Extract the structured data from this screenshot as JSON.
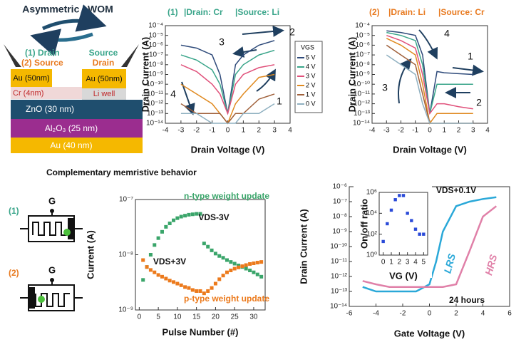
{
  "diagram": {
    "title": "Asymmetric LWOM",
    "left_label_1": "(1) Drain",
    "left_label_2": "(2) Source",
    "right_label_1": "Source",
    "right_label_2": "Drain",
    "layers": {
      "au_left": "Au (50nm)",
      "au_right": "Au (50nm)",
      "cr": "Cr (4nm)",
      "li": "Li well",
      "zno": "ZnO (30 nm)",
      "al2o3": "Al₂O₃ (25 nm)",
      "au_bottom": "Au (40 nm)"
    },
    "section_title": "Complementary memristive behavior",
    "schematic": [
      {
        "label": "(1)",
        "gate": "G"
      },
      {
        "label": "(2)",
        "gate": "G"
      }
    ]
  },
  "chart_data": [
    {
      "type": "line",
      "title": "(1)",
      "subtitles": [
        "|Drain: Cr",
        "|Source: Li"
      ],
      "title_color": "#3aa58a",
      "x_label": "Drain Voltage (V)",
      "y_label": "Drain Current (A)",
      "log_y": true,
      "xlim": [
        -4,
        4
      ],
      "xticks": [
        -4,
        -3,
        -2,
        -1,
        0,
        1,
        2,
        3,
        4
      ],
      "ylim": [
        1e-14,
        0.0001
      ],
      "yticks": [
        {
          "value": 1e-14,
          "label": "10⁻¹⁴"
        },
        {
          "value": 1e-13,
          "label": "10⁻¹³"
        },
        {
          "value": 1e-12,
          "label": "10⁻¹²"
        },
        {
          "value": 1e-11,
          "label": "10⁻¹¹"
        },
        {
          "value": 1e-10,
          "label": "10⁻¹⁰"
        },
        {
          "value": 1e-09,
          "label": "10⁻⁹"
        },
        {
          "value": 1e-08,
          "label": "10⁻⁸"
        },
        {
          "value": 1e-07,
          "label": "10⁻⁷"
        },
        {
          "value": 1e-06,
          "label": "10⁻⁶"
        },
        {
          "value": 1e-05,
          "label": "10⁻⁵"
        },
        {
          "value": 0.0001,
          "label": "10⁻⁴"
        }
      ],
      "legend_title": "VGS",
      "x": [
        -3,
        -2,
        -1,
        -0.5,
        0,
        0.5,
        1,
        2,
        3
      ],
      "series": [
        {
          "name": "5 V",
          "color": "#2e4a7a",
          "values": [
            1e-06,
            5e-07,
            1e-07,
            1e-09,
            1e-13,
            1e-08,
            1e-07,
            1e-06,
            3e-06
          ]
        },
        {
          "name": "4 V",
          "color": "#3aa58a",
          "values": [
            1e-07,
            3e-08,
            3e-09,
            1e-10,
            1e-13,
            1e-09,
            1e-08,
            1e-07,
            3e-07
          ]
        },
        {
          "name": "3 V",
          "color": "#e0507a",
          "values": [
            1e-08,
            2e-09,
            1e-10,
            1e-11,
            1e-13,
            1e-10,
            1e-09,
            5e-09,
            1e-08
          ]
        },
        {
          "name": "2 V",
          "color": "#e08a20",
          "values": [
            1e-10,
            1e-11,
            1e-12,
            1e-13,
            1e-14,
            1e-12,
            1e-11,
            5e-10,
            1e-09
          ]
        },
        {
          "name": "1 V",
          "color": "#a0603a",
          "values": [
            1e-12,
            1e-13,
            1e-13,
            1e-13,
            1e-14,
            1e-13,
            1e-13,
            3e-12,
            1e-11
          ]
        },
        {
          "name": "0 V",
          "color": "#8fb0c0",
          "values": [
            1e-13,
            1e-13,
            1e-14,
            1e-14,
            1e-14,
            1e-14,
            1e-13,
            1e-13,
            1e-12
          ]
        }
      ],
      "annotations": [
        "1",
        "2",
        "3",
        "4"
      ]
    },
    {
      "type": "line",
      "title": "(2)",
      "subtitles": [
        "|Drain: Li",
        "|Source: Cr"
      ],
      "title_color": "#e87a20",
      "x_label": "Drain Voltage (V)",
      "y_label": "Drain Current (A)",
      "log_y": true,
      "xlim": [
        -4,
        4
      ],
      "xticks": [
        -4,
        -3,
        -2,
        -1,
        0,
        1,
        2,
        3,
        4
      ],
      "ylim": [
        1e-14,
        0.0001
      ],
      "yticks": [
        {
          "value": 1e-14,
          "label": "10⁻¹⁴"
        },
        {
          "value": 1e-13,
          "label": "10⁻¹³"
        },
        {
          "value": 1e-12,
          "label": "10⁻¹²"
        },
        {
          "value": 1e-11,
          "label": "10⁻¹¹"
        },
        {
          "value": 1e-10,
          "label": "10⁻¹⁰"
        },
        {
          "value": 1e-09,
          "label": "10⁻⁹"
        },
        {
          "value": 1e-08,
          "label": "10⁻⁸"
        },
        {
          "value": 1e-07,
          "label": "10⁻⁷"
        },
        {
          "value": 1e-06,
          "label": "10⁻⁶"
        },
        {
          "value": 1e-05,
          "label": "10⁻⁵"
        },
        {
          "value": 0.0001,
          "label": "10⁻⁴"
        }
      ],
      "x": [
        -3,
        -2,
        -1,
        -0.5,
        0,
        0.5,
        1,
        2,
        3
      ],
      "series": [
        {
          "color": "#2e4a7a",
          "values": [
            3e-05,
            2e-05,
            1e-05,
            1e-07,
            1e-13,
            2e-09,
            1.5e-09,
            1.2e-09,
            1e-09
          ]
        },
        {
          "color": "#3aa58a",
          "values": [
            2e-05,
            1e-05,
            3e-06,
            1e-08,
            1e-13,
            1e-10,
            1e-10,
            1e-10,
            1e-10
          ]
        },
        {
          "color": "#e0507a",
          "values": [
            1e-05,
            3e-06,
            5e-07,
            1e-09,
            1e-13,
            1e-12,
            1e-12,
            5e-13,
            3e-13
          ]
        },
        {
          "color": "#e08a20",
          "values": [
            5e-06,
            1e-06,
            1e-07,
            1e-10,
            1e-14,
            1e-13,
            1e-13,
            1e-13,
            1e-13
          ]
        },
        {
          "color": "#a0603a",
          "values": [
            1e-06,
            1e-07,
            1e-08,
            1e-11,
            1e-14,
            1e-14,
            1e-14,
            1e-14,
            1e-14
          ]
        },
        {
          "color": "#8fb0c0",
          "values": [
            1e-07,
            1e-08,
            1e-09,
            1e-12,
            1e-14,
            1e-14,
            1e-14,
            1e-14,
            1e-14
          ]
        }
      ],
      "annotations": [
        "1",
        "2",
        "3",
        "4"
      ]
    },
    {
      "type": "scatter",
      "x_label": "Pulse Number (#)",
      "y_label": "Current (A)",
      "log_y": true,
      "xlim": [
        -1,
        33
      ],
      "xticks": [
        0,
        5,
        10,
        15,
        20,
        25,
        30
      ],
      "ylim": [
        1e-09,
        1e-07
      ],
      "yticks": [
        {
          "value": 1e-09,
          "label": "10⁻⁹"
        },
        {
          "value": 1e-08,
          "label": "10⁻⁸"
        },
        {
          "value": 1e-07,
          "label": "10⁻⁷"
        }
      ],
      "x": [
        1,
        2,
        3,
        4,
        5,
        6,
        7,
        8,
        9,
        10,
        11,
        12,
        13,
        14,
        15,
        16,
        17,
        18,
        19,
        20,
        21,
        22,
        23,
        24,
        25,
        26,
        27,
        28,
        29,
        30,
        31,
        32
      ],
      "series": [
        {
          "name": "n-type weight update",
          "color": "#3aa56a",
          "values": [
            3.5e-09,
            6e-09,
            1e-08,
            1.5e-08,
            2e-08,
            2.6e-08,
            3.2e-08,
            3.7e-08,
            4.2e-08,
            4.6e-08,
            4.9e-08,
            5.1e-08,
            5.3e-08,
            5.4e-08,
            5.5e-08,
            5.5e-08,
            1.6e-08,
            1.4e-08,
            1.2e-08,
            1.05e-08,
            9.5e-09,
            8.8e-09,
            8e-09,
            7.4e-09,
            6.9e-09,
            6.4e-09,
            6e-09,
            5.6e-09,
            5.2e-09,
            4.8e-09,
            4.4e-09,
            4e-09
          ]
        },
        {
          "name": "p-type weight update",
          "color": "#ec7a1c",
          "values": [
            8e-09,
            6e-09,
            5.3e-09,
            4.8e-09,
            4.3e-09,
            4e-09,
            3.7e-09,
            3.4e-09,
            3.2e-09,
            3e-09,
            2.8e-09,
            2.6e-09,
            2.5e-09,
            2.3e-09,
            2.2e-09,
            2.2e-09,
            2e-09,
            2.2e-09,
            2.5e-09,
            3e-09,
            3.6e-09,
            4.2e-09,
            4.8e-09,
            5.2e-09,
            5.6e-09,
            5.9e-09,
            6.2e-09,
            6.5e-09,
            6.8e-09,
            7e-09,
            7.2e-09,
            7.4e-09
          ]
        }
      ],
      "annotations": [
        "VDS+3V",
        "VDS-3V"
      ]
    },
    {
      "type": "line",
      "x_label": "Gate Voltage (V)",
      "y_label": "Drain Current (A)",
      "log_y": true,
      "xlim": [
        -6,
        6
      ],
      "xticks": [
        -6,
        -4,
        -2,
        0,
        2,
        4,
        6
      ],
      "ylim": [
        1e-14,
        1e-06
      ],
      "yticks": [
        {
          "value": 1e-14,
          "label": "10⁻¹⁴"
        },
        {
          "value": 1e-13,
          "label": "10⁻¹³"
        },
        {
          "value": 1e-12,
          "label": "10⁻¹²"
        },
        {
          "value": 1e-11,
          "label": "10⁻¹¹"
        },
        {
          "value": 1e-10,
          "label": "10⁻¹⁰"
        },
        {
          "value": 1e-09,
          "label": "10⁻⁹"
        },
        {
          "value": 1e-08,
          "label": "10⁻⁸"
        },
        {
          "value": 1e-07,
          "label": "10⁻⁷"
        },
        {
          "value": 1e-06,
          "label": "10⁻⁶"
        }
      ],
      "x": [
        -5,
        -4,
        -3,
        -2,
        -1,
        0,
        0.5,
        1,
        2,
        3,
        4,
        5
      ],
      "series": [
        {
          "name": "LRS",
          "color": "#2aa8d8",
          "values": [
            2e-13,
            1e-13,
            1e-13,
            1e-13,
            1e-13,
            3e-13,
            1e-11,
            1e-09,
            5e-08,
            1e-07,
            1.5e-07,
            2e-07
          ]
        },
        {
          "name": "HRS",
          "color": "#e080a8",
          "values": [
            5e-13,
            3e-13,
            2e-13,
            2e-13,
            2e-13,
            2e-13,
            2e-13,
            2e-13,
            3e-13,
            5e-11,
            1e-08,
            5e-08
          ]
        }
      ],
      "annotations": [
        "VDS+0.1V",
        "24 hours"
      ]
    },
    {
      "type": "scatter",
      "x_label": "VG (V)",
      "y_label": "On/off ratio",
      "log_y": true,
      "xlim": [
        -0.5,
        5.5
      ],
      "xticks": [
        0,
        1,
        2,
        3,
        4,
        5
      ],
      "ylim": [
        1,
        1000000
      ],
      "yticks": [
        {
          "value": 1,
          "label": "10⁰"
        },
        {
          "value": 100,
          "label": "10²"
        },
        {
          "value": 10000,
          "label": "10⁴"
        },
        {
          "value": 1000000,
          "label": "10⁶"
        }
      ],
      "x": [
        0,
        0.5,
        1,
        1.5,
        2,
        2.5,
        3,
        3.5,
        4,
        4.5,
        5
      ],
      "series": [
        {
          "color": "#2a4ad8",
          "values": [
            20,
            1000,
            20000,
            200000,
            500000,
            500000,
            10000,
            2000,
            300,
            100,
            100
          ]
        }
      ]
    }
  ]
}
